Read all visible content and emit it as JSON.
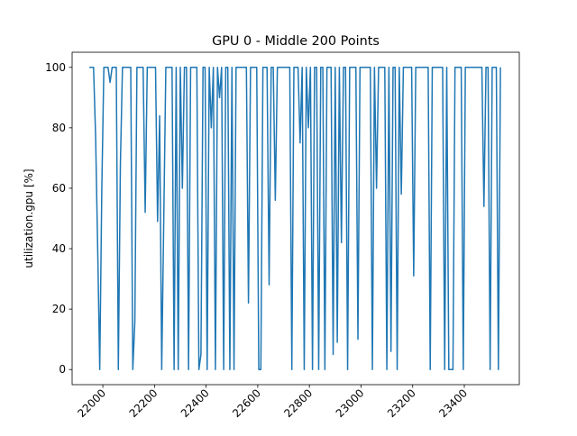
{
  "chart_data": {
    "type": "line",
    "title": "GPU 0 - Middle 200 Points",
    "ylabel": "utilization.gpu [%]",
    "color": "#1f77b4",
    "x": [
      21948,
      21956,
      21964,
      21972,
      21980,
      21988,
      21996,
      22004,
      22012,
      22020,
      22028,
      22036,
      22044,
      22052,
      22060,
      22068,
      22076,
      22084,
      22092,
      22100,
      22108,
      22116,
      22124,
      22132,
      22140,
      22148,
      22156,
      22164,
      22172,
      22180,
      22188,
      22196,
      22204,
      22212,
      22220,
      22228,
      22236,
      22244,
      22252,
      22260,
      22268,
      22276,
      22284,
      22292,
      22300,
      22308,
      22316,
      22324,
      22332,
      22340,
      22348,
      22356,
      22364,
      22372,
      22380,
      22388,
      22396,
      22404,
      22412,
      22420,
      22428,
      22436,
      22444,
      22452,
      22460,
      22468,
      22476,
      22484,
      22492,
      22500,
      22508,
      22516,
      22524,
      22532,
      22540,
      22548,
      22556,
      22564,
      22572,
      22580,
      22588,
      22596,
      22604,
      22612,
      22620,
      22628,
      22636,
      22644,
      22652,
      22660,
      22668,
      22676,
      22684,
      22692,
      22700,
      22708,
      22716,
      22724,
      22732,
      22740,
      22748,
      22756,
      22764,
      22772,
      22780,
      22788,
      22796,
      22804,
      22812,
      22820,
      22828,
      22836,
      22844,
      22852,
      22860,
      22868,
      22876,
      22884,
      22892,
      22900,
      22908,
      22916,
      22924,
      22932,
      22940,
      22948,
      22956,
      22964,
      22972,
      22980,
      22988,
      22996,
      23004,
      23012,
      23020,
      23028,
      23036,
      23044,
      23052,
      23060,
      23068,
      23076,
      23084,
      23092,
      23100,
      23108,
      23116,
      23124,
      23132,
      23140,
      23148,
      23156,
      23164,
      23172,
      23180,
      23188,
      23196,
      23204,
      23212,
      23220,
      23228,
      23236,
      23244,
      23252,
      23260,
      23268,
      23276,
      23284,
      23292,
      23300,
      23308,
      23316,
      23324,
      23332,
      23340,
      23348,
      23356,
      23364,
      23372,
      23380,
      23388,
      23396,
      23404,
      23412,
      23420,
      23428,
      23436,
      23444,
      23452,
      23460,
      23468,
      23476,
      23484,
      23492,
      23500,
      23508,
      23516,
      23524,
      23532,
      23540
    ],
    "values": [
      100,
      100,
      100,
      77,
      40,
      0,
      60,
      100,
      100,
      100,
      95,
      100,
      100,
      100,
      0,
      68,
      100,
      100,
      100,
      100,
      100,
      0,
      16,
      100,
      100,
      100,
      100,
      52,
      100,
      100,
      100,
      100,
      100,
      49,
      84,
      0,
      50,
      100,
      100,
      100,
      100,
      0,
      100,
      0,
      100,
      60,
      100,
      100,
      0,
      100,
      100,
      100,
      100,
      0,
      5,
      100,
      100,
      0,
      100,
      80,
      100,
      0,
      100,
      90,
      100,
      0,
      100,
      100,
      0,
      100,
      0,
      100,
      100,
      100,
      100,
      100,
      100,
      22,
      100,
      100,
      100,
      100,
      0,
      0,
      100,
      100,
      100,
      28,
      100,
      100,
      56,
      100,
      100,
      100,
      100,
      100,
      100,
      100,
      0,
      100,
      100,
      100,
      75,
      100,
      0,
      100,
      80,
      100,
      0,
      100,
      100,
      0,
      100,
      100,
      0,
      100,
      100,
      100,
      5,
      100,
      9,
      100,
      42,
      100,
      100,
      0,
      100,
      100,
      100,
      100,
      10,
      100,
      100,
      100,
      100,
      100,
      100,
      0,
      100,
      60,
      100,
      100,
      100,
      100,
      0,
      100,
      6,
      100,
      100,
      0,
      100,
      58,
      100,
      100,
      100,
      100,
      100,
      31,
      100,
      100,
      100,
      100,
      100,
      100,
      100,
      0,
      100,
      100,
      100,
      100,
      100,
      100,
      0,
      100,
      0,
      0,
      0,
      100,
      100,
      100,
      100,
      0,
      100,
      100,
      100,
      100,
      100,
      100,
      100,
      100,
      100,
      54,
      100,
      100,
      0,
      100,
      100,
      100,
      0,
      100
    ],
    "xlim": [
      21881,
      23613
    ],
    "xticks": [
      22000,
      22200,
      22400,
      22600,
      22800,
      23000,
      23200,
      23400
    ],
    "ylim": [
      -5,
      105
    ],
    "yticks": [
      0,
      20,
      40,
      60,
      80,
      100
    ]
  }
}
